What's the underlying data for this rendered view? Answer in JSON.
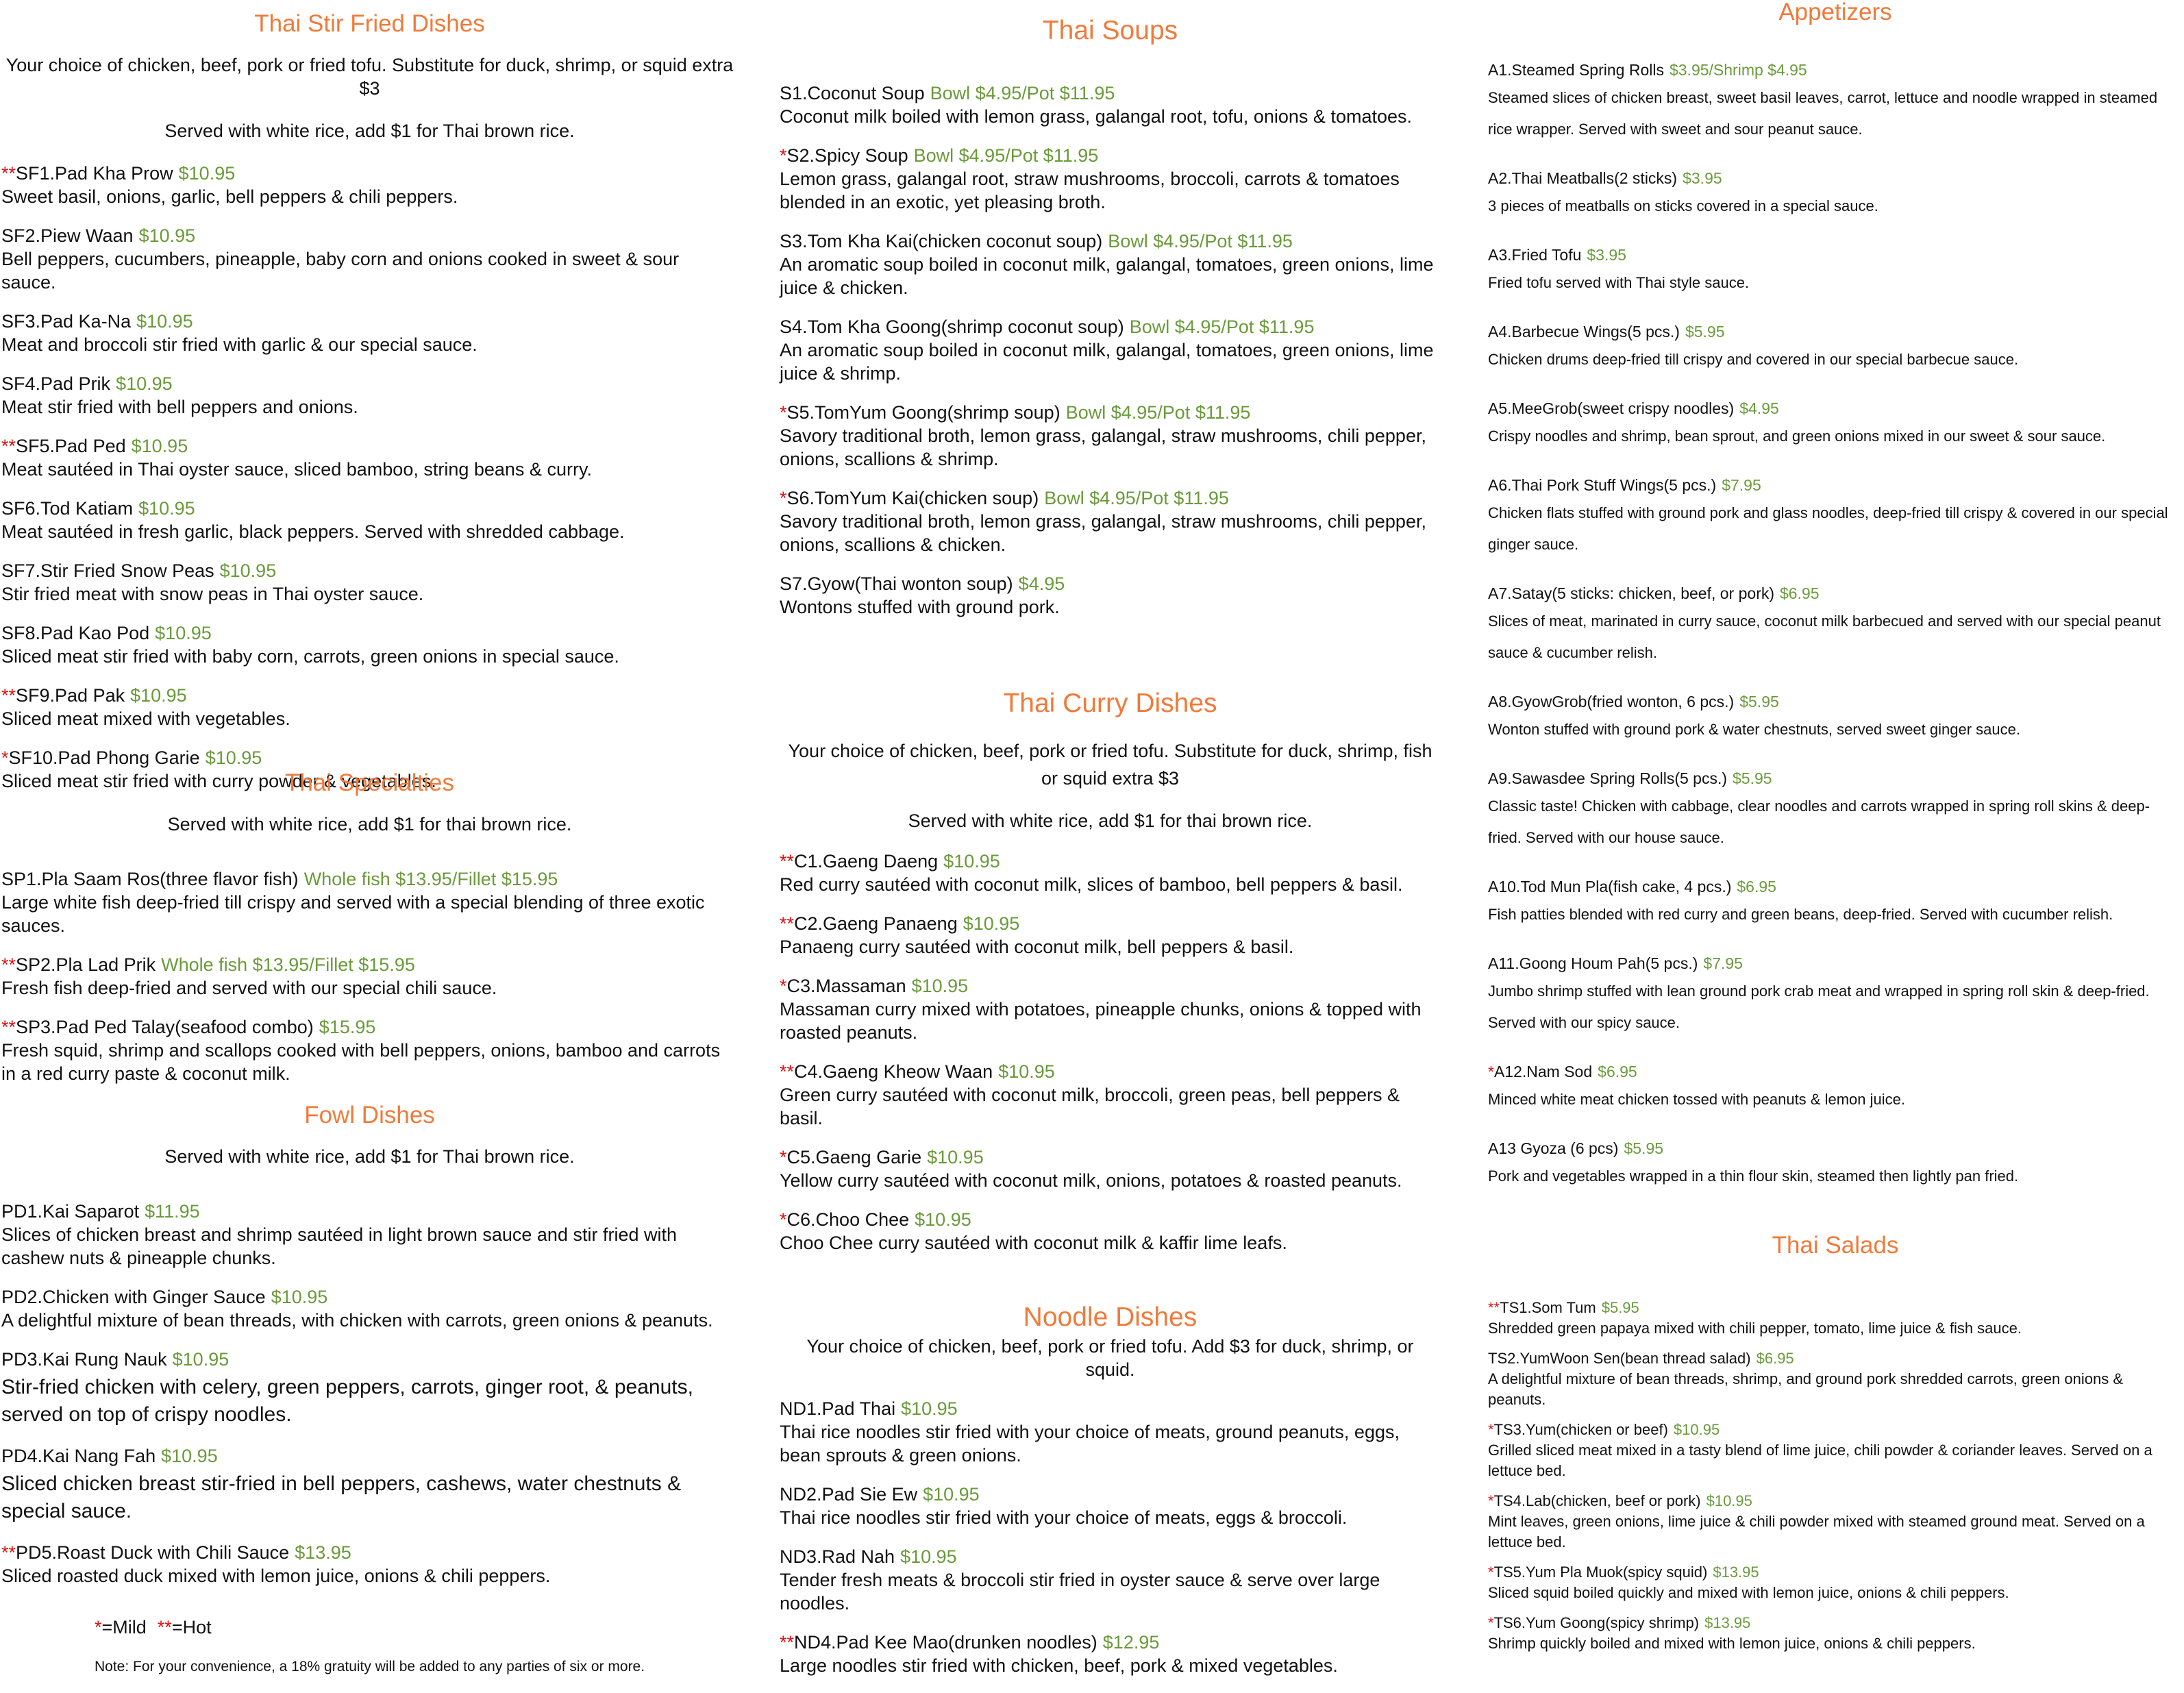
{
  "columns": [
    {
      "sections": [
        {
          "title": "Thai Stir Fried Dishes",
          "notes": [
            "Your choice of chicken, beef, pork or fried tofu. Substitute for duck, shrimp, or squid extra $3",
            "Served with white rice, add $1 for Thai brown rice."
          ],
          "items": [
            {
              "marker": "**",
              "name": "SF1.Pad Kha Prow",
              "price": "$10.95",
              "description": "Sweet basil, onions, garlic, bell peppers & chili peppers."
            },
            {
              "name": "SF2.Piew Waan",
              "price": "$10.95",
              "description": "Bell peppers, cucumbers, pineapple, baby corn and onions cooked in sweet & sour sauce."
            },
            {
              "name": "SF3.Pad Ka-Na",
              "price": "$10.95",
              "description": "Meat and broccoli stir fried with garlic & our special sauce."
            },
            {
              "name": "SF4.Pad Prik",
              "price": "$10.95",
              "description": "Meat stir fried with bell peppers and onions."
            },
            {
              "marker": "**",
              "name": "SF5.Pad Ped",
              "price": "$10.95",
              "description": "Meat sautéed in Thai oyster sauce, sliced bamboo, string beans & curry."
            },
            {
              "name": "SF6.Tod Katiam",
              "price": "$10.95",
              "description": "Meat sautéed in fresh garlic, black peppers.  Served with shredded cabbage."
            },
            {
              "name": "SF7.Stir Fried Snow Peas",
              "price": "$10.95",
              "description": "Stir fried meat with snow peas in Thai oyster sauce."
            },
            {
              "name": "SF8.Pad Kao Pod",
              "price": "$10.95",
              "description": "Sliced meat stir fried with baby corn, carrots, green onions in special sauce."
            },
            {
              "marker": "**",
              "name": "SF9.Pad Pak",
              "price": "$10.95",
              "description": "Sliced meat mixed with vegetables."
            },
            {
              "marker": "*",
              "name": "SF10.Pad Phong Garie",
              "price": "$10.95",
              "description": "Sliced meat stir fried with curry powder & vegetables."
            }
          ]
        },
        {
          "title": "Thai Specialties",
          "notes": [
            "Served with white rice, add $1 for thai brown rice."
          ],
          "items": [
            {
              "name": "SP1.Pla Saam Ros(three flavor fish)",
              "price": "Whole fish $13.95/Fillet $15.95",
              "description": "Large white fish deep-fried till crispy and served with a special blending of three exotic sauces."
            },
            {
              "marker": "**",
              "name": "SP2.Pla Lad Prik",
              "price": "Whole fish $13.95/Fillet $15.95",
              "description": "Fresh fish deep-fried and served with our special chili sauce."
            },
            {
              "marker": "**",
              "name": "SP3.Pad Ped Talay(seafood combo)",
              "price": "$15.95",
              "description": "Fresh squid, shrimp and scallops cooked with bell peppers, onions, bamboo and carrots in a red curry paste & coconut milk."
            }
          ]
        },
        {
          "title": "Fowl Dishes",
          "notes": [
            "Served with white rice, add $1 for Thai brown rice."
          ],
          "items": [
            {
              "name": "PD1.Kai Saparot",
              "price": "$11.95",
              "description": "Slices of chicken breast and shrimp sautéed in light brown sauce and stir fried with cashew nuts & pineapple chunks."
            },
            {
              "name": "PD2.Chicken with Ginger Sauce",
              "price": "$10.95",
              "description": "A delightful mixture of bean threads, with chicken with carrots, green onions & peanuts."
            },
            {
              "name": "PD3.Kai Rung Nauk",
              "price": "$10.95",
              "description": "Stir-fried chicken with celery, green peppers, carrots, ginger root, & peanuts, served on top of crispy noodles."
            },
            {
              "name": "PD4.Kai Nang Fah",
              "price": "$10.95",
              "description": "Sliced chicken breast stir-fried in bell peppers, cashews, water chestnuts & special sauce."
            },
            {
              "marker": "**",
              "name": "PD5.Roast Duck with Chili Sauce",
              "price": "$13.95",
              "description": "Sliced roasted duck mixed with lemon juice, onions & chili peppers."
            }
          ]
        }
      ]
    },
    {
      "sections": [
        {
          "title": "Thai Soups",
          "items": [
            {
              "name": "S1.Coconut Soup",
              "price": "Bowl $4.95/Pot $11.95",
              "description": "Coconut milk boiled with lemon grass, galangal root, tofu, onions & tomatoes."
            },
            {
              "marker": "*",
              "name": "S2.Spicy Soup",
              "price": "Bowl $4.95/Pot $11.95",
              "description": "Lemon grass, galangal root, straw mushrooms, broccoli, carrots & tomatoes blended in an exotic, yet pleasing broth."
            },
            {
              "name": "S3.Tom Kha Kai(chicken coconut soup)",
              "price": "Bowl $4.95/Pot $11.95",
              "description": "An aromatic soup boiled in coconut milk, galangal, tomatoes, green onions, lime juice & chicken."
            },
            {
              "name": "S4.Tom Kha Goong(shrimp coconut soup)",
              "price": "Bowl $4.95/Pot $11.95",
              "description": "An aromatic soup boiled in coconut milk, galangal, tomatoes, green onions, lime juice & shrimp."
            },
            {
              "marker": "*",
              "name": "S5.TomYum Goong(shrimp soup)",
              "price": "Bowl $4.95/Pot $11.95",
              "description": "Savory traditional broth, lemon grass, galangal, straw mushrooms, chili pepper, onions, scallions & shrimp."
            },
            {
              "marker": "*",
              "name": "S6.TomYum Kai(chicken soup)",
              "price": "Bowl $4.95/Pot $11.95",
              "description": "Savory traditional broth, lemon grass, galangal, straw mushrooms, chili pepper, onions, scallions & chicken."
            },
            {
              "name": "S7.Gyow(Thai wonton soup)",
              "price": "$4.95",
              "description": "Wontons stuffed with ground pork."
            }
          ]
        },
        {
          "title": "Thai Curry Dishes",
          "notes": [
            "Your choice of chicken, beef, pork or fried tofu. Substitute for duck, shrimp, fish or squid extra $3",
            "Served with white rice, add $1 for thai brown rice."
          ],
          "items": [
            {
              "marker": "**",
              "name": "C1.Gaeng Daeng",
              "price": "$10.95",
              "description": "Red curry sautéed with coconut milk, slices of bamboo, bell peppers & basil."
            },
            {
              "marker": "**",
              "name": "C2.Gaeng Panaeng",
              "price": "$10.95",
              "description": "Panaeng curry sautéed with coconut milk, bell peppers & basil."
            },
            {
              "marker": "*",
              "name": "C3.Massaman",
              "price": "$10.95",
              "description": "Massaman curry mixed with potatoes, pineapple chunks, onions & topped with roasted peanuts."
            },
            {
              "marker": "**",
              "name": "C4.Gaeng Kheow Waan",
              "price": "$10.95",
              "description": "Green curry sautéed with coconut milk, broccoli, green peas, bell peppers & basil."
            },
            {
              "marker": "*",
              "name": "C5.Gaeng Garie",
              "price": "$10.95",
              "description": "Yellow curry sautéed with coconut milk, onions, potatoes & roasted peanuts."
            },
            {
              "marker": "*",
              "name": "C6.Choo Chee",
              "price": "$10.95",
              "description": "Choo Chee curry sautéed with coconut milk & kaffir lime leafs."
            }
          ]
        },
        {
          "title": "Noodle Dishes",
          "notes": [
            "Your choice of chicken, beef, pork or fried tofu.  Add $3 for duck, shrimp, or squid."
          ],
          "items": [
            {
              "name": "ND1.Pad Thai",
              "price": "$10.95",
              "description": "Thai rice noodles stir fried with your choice of meats, ground peanuts, eggs, bean sprouts & green onions."
            },
            {
              "name": "ND2.Pad Sie Ew",
              "price": "$10.95",
              "description": "Thai rice noodles stir fried with your choice of meats, eggs & broccoli."
            },
            {
              "name": "ND3.Rad Nah",
              "price": "$10.95",
              "description": "Tender fresh meats & broccoli stir fried in oyster sauce & serve over large noodles."
            },
            {
              "marker": "**",
              "name": "ND4.Pad Kee Mao(drunken noodles)",
              "price": "$12.95",
              "description": "Large noodles stir fried with chicken, beef, pork & mixed vegetables."
            }
          ]
        }
      ]
    },
    {
      "sections": [
        {
          "title": "Appetizers",
          "items": [
            {
              "name": "A1.Steamed Spring Rolls",
              "price": "$3.95/Shrimp $4.95",
              "description": "Steamed slices of chicken breast, sweet basil leaves, carrot, lettuce and noodle wrapped in steamed rice wrapper. Served with sweet and sour peanut sauce."
            },
            {
              "name": "A2.Thai Meatballs(2 sticks)",
              "price": "$3.95",
              "description": "3 pieces of meatballs on sticks covered in a special sauce."
            },
            {
              "name": "A3.Fried Tofu",
              "price": "$3.95",
              "description": "Fried tofu served with Thai style sauce."
            },
            {
              "name": "A4.Barbecue Wings(5 pcs.)",
              "price": "$5.95",
              "description": "Chicken drums deep-fried till crispy and covered in our special barbecue sauce."
            },
            {
              "name": "A5.MeeGrob(sweet crispy noodles)",
              "price": "$4.95",
              "description": "Crispy noodles and shrimp, bean sprout, and green onions mixed in our sweet & sour sauce."
            },
            {
              "name": "A6.Thai Pork Stuff Wings(5 pcs.)",
              "price": "$7.95",
              "description": "Chicken flats stuffed with ground pork and glass noodles, deep-fried till crispy & covered in our special ginger sauce."
            },
            {
              "name": "A7.Satay(5 sticks: chicken, beef, or pork)",
              "price": "$6.95",
              "description": "Slices of meat, marinated in curry sauce, coconut milk barbecued and served with our special peanut sauce & cucumber relish."
            },
            {
              "name": "A8.GyowGrob(fried wonton, 6 pcs.)",
              "price": "$5.95",
              "description": "Wonton stuffed with ground pork & water chestnuts, served sweet ginger sauce."
            },
            {
              "name": "A9.Sawasdee Spring Rolls(5 pcs.)",
              "price": "$5.95",
              "description": "Classic taste! Chicken with cabbage, clear noodles and carrots wrapped in spring roll skins & deep-fried.  Served with our house sauce."
            },
            {
              "name": "A10.Tod Mun Pla(fish cake, 4 pcs.)",
              "price": "$6.95",
              "description": "Fish patties blended with red curry and green beans, deep-fried.  Served with cucumber relish."
            },
            {
              "name": "A11.Goong Houm Pah(5 pcs.)",
              "price": "$7.95",
              "description": "Jumbo shrimp stuffed with lean ground pork crab meat and wrapped in spring roll skin & deep-fried. Served with our  spicy sauce."
            },
            {
              "marker": "*",
              "name": "A12.Nam Sod",
              "price": "$6.95",
              "description": "Minced white meat chicken tossed with peanuts & lemon juice."
            },
            {
              "name": "A13 Gyoza (6 pcs)",
              "price": "$5.95",
              "description": "Pork and vegetables wrapped in a thin flour skin, steamed then lightly pan fried."
            }
          ]
        },
        {
          "title": "Thai Salads",
          "items": [
            {
              "marker": "**",
              "name": "TS1.Som Tum",
              "price": "$5.95",
              "description": "Shredded green papaya mixed with chili pepper, tomato, lime juice & fish sauce."
            },
            {
              "name": "TS2.YumWoon Sen(bean thread salad)",
              "price": "$6.95",
              "description": "A delightful mixture of bean threads, shrimp, and ground pork shredded carrots, green onions & peanuts."
            },
            {
              "marker": "*",
              "name": "TS3.Yum(chicken or beef)",
              "price": "$10.95",
              "description": "Grilled sliced meat mixed in a tasty blend of lime juice, chili powder & coriander leaves.  Served on a lettuce bed."
            },
            {
              "marker": "*",
              "name": "TS4.Lab(chicken, beef or pork)",
              "price": "$10.95",
              "description": "Mint leaves, green onions, lime juice & chili powder mixed with steamed ground meat.  Served on a lettuce bed."
            },
            {
              "marker": "*",
              "name": "TS5.Yum Pla Muok(spicy squid)",
              "price": "$13.95",
              "description": "Sliced squid boiled quickly and mixed with lemon juice, onions & chili peppers."
            },
            {
              "marker": "*",
              "name": "TS6.Yum Goong(spicy shrimp)",
              "price": "$13.95",
              "description": "Shrimp quickly boiled and mixed with lemon juice, onions & chili peppers."
            }
          ]
        }
      ]
    }
  ],
  "legend": {
    "mild_marker": "*",
    "mild_label": "=Mild",
    "hot_marker": "**",
    "hot_label": "=Hot"
  },
  "footnote": "Note: For your convenience, a 18% gratuity will be added to any parties of six or more."
}
